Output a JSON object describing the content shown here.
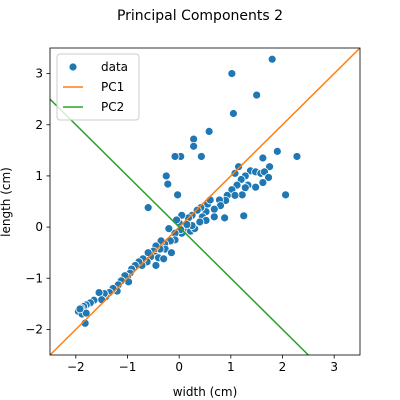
{
  "chart_data": {
    "type": "scatter",
    "title": "Principal Components 2",
    "xlabel": "width (cm)",
    "ylabel": "length (cm)",
    "xlim": [
      -2.5,
      3.5
    ],
    "ylim": [
      -2.5,
      3.5
    ],
    "xticks": [
      -2,
      -1,
      0,
      1,
      2,
      3
    ],
    "yticks": [
      -2,
      -1,
      0,
      1,
      2,
      3
    ],
    "grid": false,
    "legend_position": "top-left",
    "series": [
      {
        "name": "data",
        "kind": "scatter",
        "color": "#1f77b4",
        "points": [
          [
            1.8,
            3.28
          ],
          [
            1.02,
            3.0
          ],
          [
            1.5,
            2.58
          ],
          [
            1.05,
            2.22
          ],
          [
            0.58,
            1.87
          ],
          [
            0.28,
            1.72
          ],
          [
            0.03,
            1.38
          ],
          [
            -0.08,
            1.38
          ],
          [
            0.43,
            1.38
          ],
          [
            0.28,
            1.58
          ],
          [
            -0.25,
            1.0
          ],
          [
            -0.22,
            0.84
          ],
          [
            -0.03,
            0.63
          ],
          [
            -0.6,
            0.38
          ],
          [
            1.9,
            1.48
          ],
          [
            2.28,
            1.38
          ],
          [
            1.62,
            1.35
          ],
          [
            1.75,
            1.18
          ],
          [
            2.06,
            0.63
          ],
          [
            1.25,
            0.22
          ],
          [
            1.15,
            1.18
          ],
          [
            1.38,
            1.1
          ],
          [
            1.28,
            1.0
          ],
          [
            1.08,
            1.05
          ],
          [
            1.2,
            0.93
          ],
          [
            1.48,
            1.08
          ],
          [
            1.58,
            1.05
          ],
          [
            1.65,
            1.08
          ],
          [
            1.73,
            0.97
          ],
          [
            1.62,
            0.87
          ],
          [
            1.48,
            0.78
          ],
          [
            1.33,
            0.82
          ],
          [
            1.12,
            0.82
          ],
          [
            1.02,
            0.73
          ],
          [
            1.22,
            0.63
          ],
          [
            1.08,
            0.62
          ],
          [
            0.93,
            0.62
          ],
          [
            1.28,
            0.77
          ],
          [
            0.9,
            0.52
          ],
          [
            0.78,
            0.53
          ],
          [
            0.8,
            0.42
          ],
          [
            0.68,
            0.35
          ],
          [
            0.55,
            0.45
          ],
          [
            0.6,
            0.53
          ],
          [
            0.52,
            0.3
          ],
          [
            0.42,
            0.38
          ],
          [
            0.35,
            0.33
          ],
          [
            0.45,
            0.2
          ],
          [
            0.52,
            0.13
          ],
          [
            0.68,
            0.2
          ],
          [
            0.88,
            0.18
          ],
          [
            0.4,
            0.1
          ],
          [
            0.25,
            0.23
          ],
          [
            0.18,
            0.18
          ],
          [
            0.05,
            0.23
          ],
          [
            0.0,
            0.08
          ],
          [
            -0.05,
            0.14
          ],
          [
            0.1,
            -0.05
          ],
          [
            0.22,
            -0.08
          ],
          [
            0.3,
            -0.03
          ],
          [
            0.25,
            0.03
          ],
          [
            0.15,
            0.05
          ],
          [
            0.05,
            -0.12
          ],
          [
            0.03,
            -0.05
          ],
          [
            -0.08,
            -0.12
          ],
          [
            -0.2,
            -0.03
          ],
          [
            -0.08,
            -0.25
          ],
          [
            -0.17,
            -0.27
          ],
          [
            -0.28,
            -0.33
          ],
          [
            -0.35,
            -0.27
          ],
          [
            -0.27,
            -0.43
          ],
          [
            -0.37,
            -0.43
          ],
          [
            -0.45,
            -0.37
          ],
          [
            -0.5,
            -0.47
          ],
          [
            -0.45,
            -0.57
          ],
          [
            -0.55,
            -0.58
          ],
          [
            -0.6,
            -0.5
          ],
          [
            -0.4,
            -0.6
          ],
          [
            -0.62,
            -0.68
          ],
          [
            -0.7,
            -0.62
          ],
          [
            -0.72,
            -0.75
          ],
          [
            -0.78,
            -0.68
          ],
          [
            -0.85,
            -0.75
          ],
          [
            -0.92,
            -0.82
          ],
          [
            -0.95,
            -0.9
          ],
          [
            -1.0,
            -0.98
          ],
          [
            -1.05,
            -0.95
          ],
          [
            -0.98,
            -1.07
          ],
          [
            -1.12,
            -1.05
          ],
          [
            -1.18,
            -1.13
          ],
          [
            -1.2,
            -1.25
          ],
          [
            -1.28,
            -1.2
          ],
          [
            -1.35,
            -1.28
          ],
          [
            -1.42,
            -1.36
          ],
          [
            -1.45,
            -1.3
          ],
          [
            -1.55,
            -1.28
          ],
          [
            -1.5,
            -1.42
          ],
          [
            -1.65,
            -1.43
          ],
          [
            -1.72,
            -1.48
          ],
          [
            -1.8,
            -1.52
          ],
          [
            -1.85,
            -1.55
          ],
          [
            -1.9,
            -1.58
          ],
          [
            -1.95,
            -1.65
          ],
          [
            -1.88,
            -1.7
          ],
          [
            -1.8,
            -1.68
          ],
          [
            -1.92,
            -1.6
          ],
          [
            -1.82,
            -1.88
          ],
          [
            -0.45,
            -0.75
          ],
          [
            -0.3,
            -0.62
          ],
          [
            -0.15,
            -0.5
          ]
        ]
      },
      {
        "name": "PC1",
        "kind": "line",
        "color": "#ff7f0e",
        "points": [
          [
            -2.6,
            -2.6
          ],
          [
            3.6,
            3.6
          ]
        ]
      },
      {
        "name": "PC2",
        "kind": "line",
        "color": "#2ca02c",
        "points": [
          [
            -2.6,
            2.6
          ],
          [
            2.6,
            -2.6
          ]
        ]
      }
    ]
  }
}
